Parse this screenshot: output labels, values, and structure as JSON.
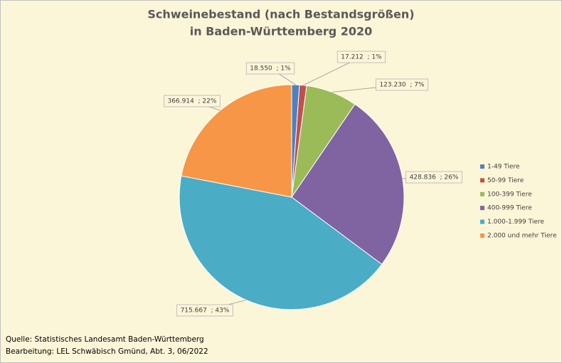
{
  "chart_data": {
    "type": "pie",
    "title": [
      "Schweinebestand (nach Bestandsgrößen)",
      "in Baden-Württemberg 2020"
    ],
    "categories": [
      "1-49 Tiere",
      "50-99 Tiere",
      "100-399 Tiere",
      "400-999 Tiere",
      "1.000-1.999 Tiere",
      "2.000 und mehr Tiere"
    ],
    "values": [
      18550,
      17212,
      123230,
      428836,
      715667,
      366914
    ],
    "value_labels": [
      "18.550  ; 1%",
      "17.212  ; 1%",
      "123.230  ; 7%",
      "428.836  ; 26%",
      "715.667  ; 43%",
      "366.914  ; 22%"
    ],
    "colors": [
      "#4f81bd",
      "#c0504d",
      "#9bbb59",
      "#8064a2",
      "#4bacc6",
      "#f79646"
    ],
    "legend": "right",
    "notes": [
      "Quelle: Statistisches Landesamt Baden-Württemberg",
      "Bearbeitung: LEL Schwäbisch Gmünd, Abt. 3, 06/2022"
    ]
  }
}
